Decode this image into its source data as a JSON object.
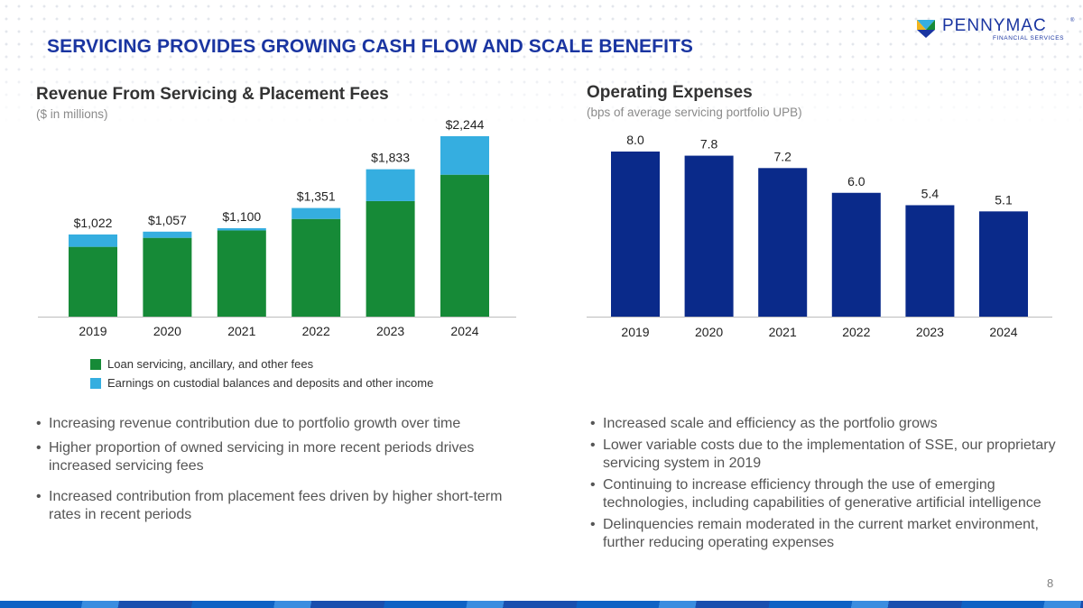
{
  "page": {
    "title": "SERVICING PROVIDES GROWING CASH FLOW AND SCALE BENEFITS",
    "logo_text": "PENNYMAC",
    "logo_sub": "FINANCIAL SERVICES",
    "logo_mark": "®",
    "page_number": "8"
  },
  "colors": {
    "brand_blue": "#1a35a1",
    "green": "#168a37",
    "light_blue": "#35aee0",
    "navy": "#0a2a8a"
  },
  "left": {
    "title": "Revenue From Servicing & Placement Fees",
    "subtitle": "($ in millions)",
    "bullets": [
      "Increasing revenue contribution due to portfolio growth over time",
      "Higher proportion of owned servicing in more recent periods drives increased servicing fees",
      "Increased contribution from placement fees driven by higher short-term rates in recent periods"
    ]
  },
  "right": {
    "title": "Operating Expenses",
    "subtitle": "(bps of average servicing portfolio UPB)",
    "bullets": [
      "Increased scale and efficiency as the portfolio grows",
      "Lower variable costs due to the implementation of SSE, our proprietary servicing system in 2019",
      "Continuing to increase efficiency through the use of emerging technologies, including capabilities of generative artificial intelligence",
      "Delinquencies remain moderated in the current market environment, further reducing operating expenses"
    ]
  },
  "chart_data": [
    {
      "type": "bar",
      "stacked": true,
      "title": "Revenue From Servicing & Placement Fees",
      "ylabel": "($ in millions)",
      "categories": [
        "2019",
        "2020",
        "2021",
        "2022",
        "2023",
        "2024"
      ],
      "series": [
        {
          "name": "Loan servicing, ancillary, and other fees",
          "color": "#168a37",
          "values": [
            868,
            980,
            1072,
            1215,
            1437,
            1765
          ]
        },
        {
          "name": "Earnings on custodial balances and deposits and other income",
          "color": "#35aee0",
          "values": [
            154,
            77,
            28,
            136,
            396,
            479
          ]
        }
      ],
      "totals": [
        "$1,022",
        "$1,057",
        "$1,100",
        "$1,351",
        "$1,833",
        "$2,244"
      ],
      "ylim": [
        0,
        2244
      ],
      "legend": "bottom-left",
      "grid": false
    },
    {
      "type": "bar",
      "title": "Operating Expenses",
      "ylabel": "(bps of average servicing portfolio UPB)",
      "categories": [
        "2019",
        "2020",
        "2021",
        "2022",
        "2023",
        "2024"
      ],
      "values": [
        8.0,
        7.8,
        7.2,
        6.0,
        5.4,
        5.1
      ],
      "labels": [
        "8.0",
        "7.8",
        "7.2",
        "6.0",
        "5.4",
        "5.1"
      ],
      "color": "#0a2a8a",
      "ylim": [
        0,
        8.0
      ],
      "grid": false
    }
  ]
}
